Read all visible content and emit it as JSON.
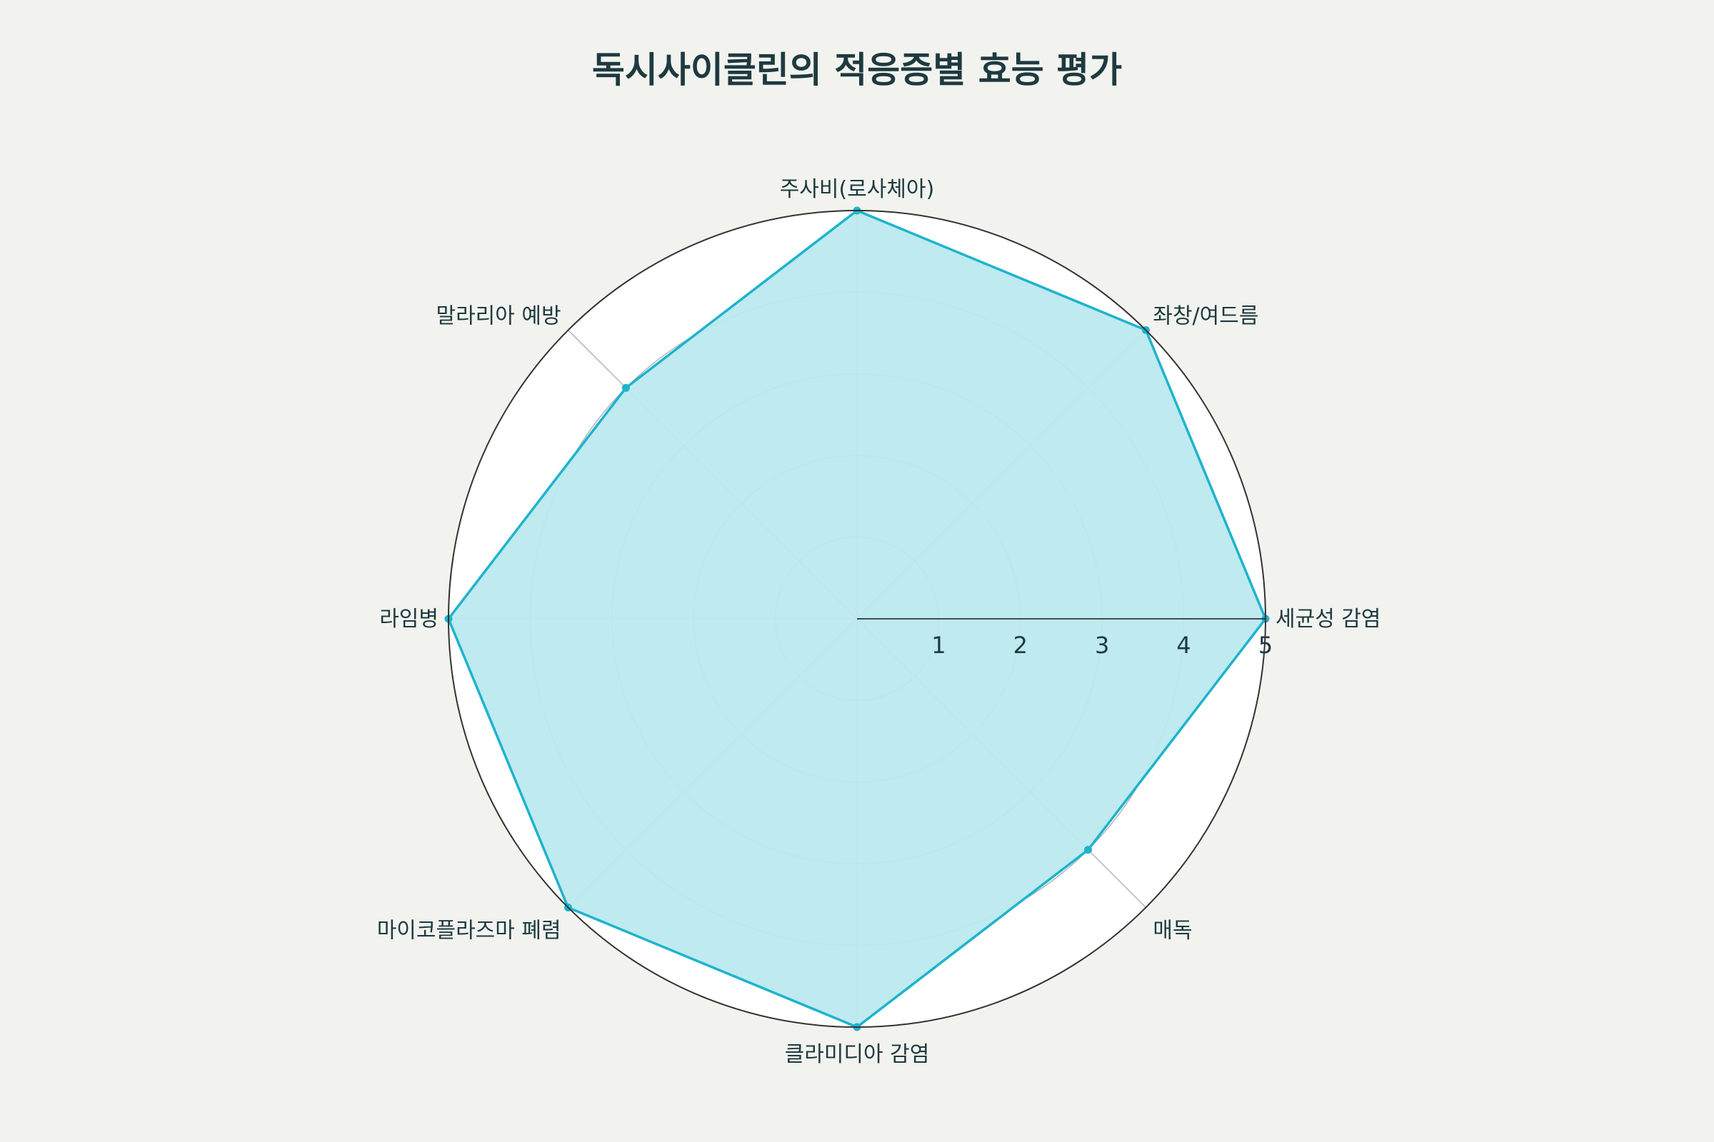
{
  "chart_data": {
    "type": "radar",
    "title": "독시사이클린의 적응증별 효능 평가",
    "categories": [
      "세균성 감염",
      "좌창/여드름",
      "주사비(로사체아)",
      "말라리아 예방",
      "라임병",
      "마이코플라즈마 폐렴",
      "클라미디아 감염",
      "매독"
    ],
    "series": [
      {
        "values": [
          5,
          5,
          5,
          4,
          5,
          5,
          5,
          4
        ]
      }
    ],
    "rlim": [
      0,
      5
    ],
    "r_ticks": [
      "1",
      "2",
      "3",
      "4",
      "5"
    ],
    "grid": true,
    "legend": "none",
    "colors": {
      "line": "#1fb3cc",
      "fill": "#bbe9ef",
      "plot_bg": "#ffffff",
      "page_bg": "#f2f3ee",
      "grid": "#b0b8bc",
      "outer_ring": "#333333",
      "text": "#1e3a40"
    }
  }
}
